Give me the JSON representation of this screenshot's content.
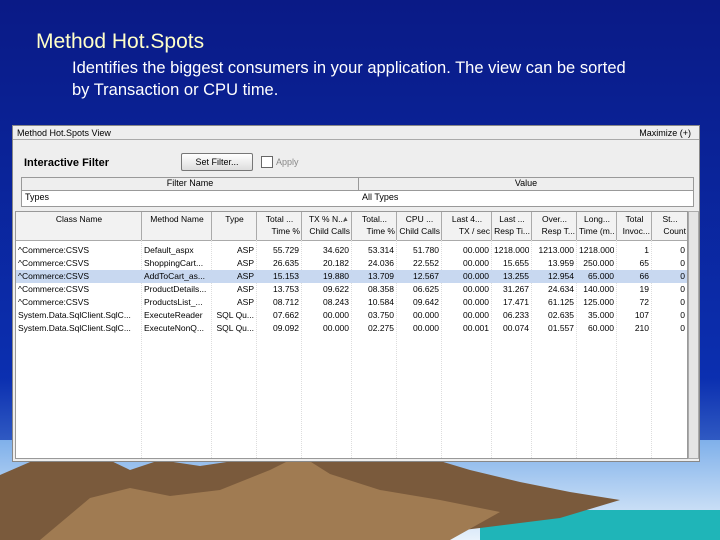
{
  "slide": {
    "title": "Method Hot.Spots",
    "subtitle": "Identifies the biggest consumers in your application. The view can be sorted by Transaction or CPU time."
  },
  "window": {
    "title": "Method Hot.Spots View",
    "maximize": "Maximize (+)",
    "filter_label": "Interactive Filter",
    "set_filter_button": "Set Filter...",
    "apply_checkbox": "Apply",
    "filter_table": {
      "columns": [
        "Filter Name",
        "Value"
      ],
      "rows": [
        [
          "Types",
          "All Types"
        ]
      ]
    }
  },
  "table": {
    "columns": [
      {
        "top": "Class Name"
      },
      {
        "top": "Method Name"
      },
      {
        "top": "Type"
      },
      {
        "top": "Total ...",
        "bottom": "Time %"
      },
      {
        "top": "TX % N...",
        "bottom": "Child Calls"
      },
      {
        "top": "Total...",
        "bottom": "Time %"
      },
      {
        "top": "CPU ...",
        "bottom": "Child Calls"
      },
      {
        "top": "Last 4...",
        "bottom": "TX / sec"
      },
      {
        "top": "Last ...",
        "bottom": "Resp Ti..."
      },
      {
        "top": "Over...",
        "bottom": "Resp T..."
      },
      {
        "top": "Long...",
        "bottom": "Time (m..."
      },
      {
        "top": "Total",
        "bottom": "Invoc..."
      },
      {
        "top": "St...",
        "bottom": "Count"
      }
    ],
    "rows": [
      [
        "^Commerce:CSVS",
        "Default_aspx",
        "ASP",
        "55.729",
        "34.620",
        "53.314",
        "51.780",
        "00.000",
        "1218.000",
        "1213.000",
        "1218.000",
        "1",
        "0"
      ],
      [
        "^Commerce:CSVS",
        "ShoppingCart...",
        "ASP",
        "26.635",
        "20.182",
        "24.036",
        "22.552",
        "00.000",
        "15.655",
        "13.959",
        "250.000",
        "65",
        "0"
      ],
      [
        "^Commerce:CSVS",
        "AddToCart_as...",
        "ASP",
        "15.153",
        "19.880",
        "13.709",
        "12.567",
        "00.000",
        "13.255",
        "12.954",
        "65.000",
        "66",
        "0"
      ],
      [
        "^Commerce:CSVS",
        "ProductDetails...",
        "ASP",
        "13.753",
        "09.622",
        "08.358",
        "06.625",
        "00.000",
        "31.267",
        "24.634",
        "140.000",
        "19",
        "0"
      ],
      [
        "^Commerce:CSVS",
        "ProductsList_...",
        "ASP",
        "08.712",
        "08.243",
        "10.584",
        "09.642",
        "00.000",
        "17.471",
        "61.125",
        "125.000",
        "72",
        "0"
      ],
      [
        "System.Data.SqlClient.SqlC...",
        "ExecuteReader",
        "SQL Qu...",
        "07.662",
        "00.000",
        "03.750",
        "00.000",
        "00.000",
        "06.233",
        "02.635",
        "35.000",
        "107",
        "0"
      ],
      [
        "System.Data.SqlClient.SqlC...",
        "ExecuteNonQ...",
        "SQL Qu...",
        "09.092",
        "00.000",
        "02.275",
        "00.000",
        "00.001",
        "00.074",
        "01.557",
        "60.000",
        "210",
        "0"
      ]
    ],
    "selected_row": 2
  }
}
